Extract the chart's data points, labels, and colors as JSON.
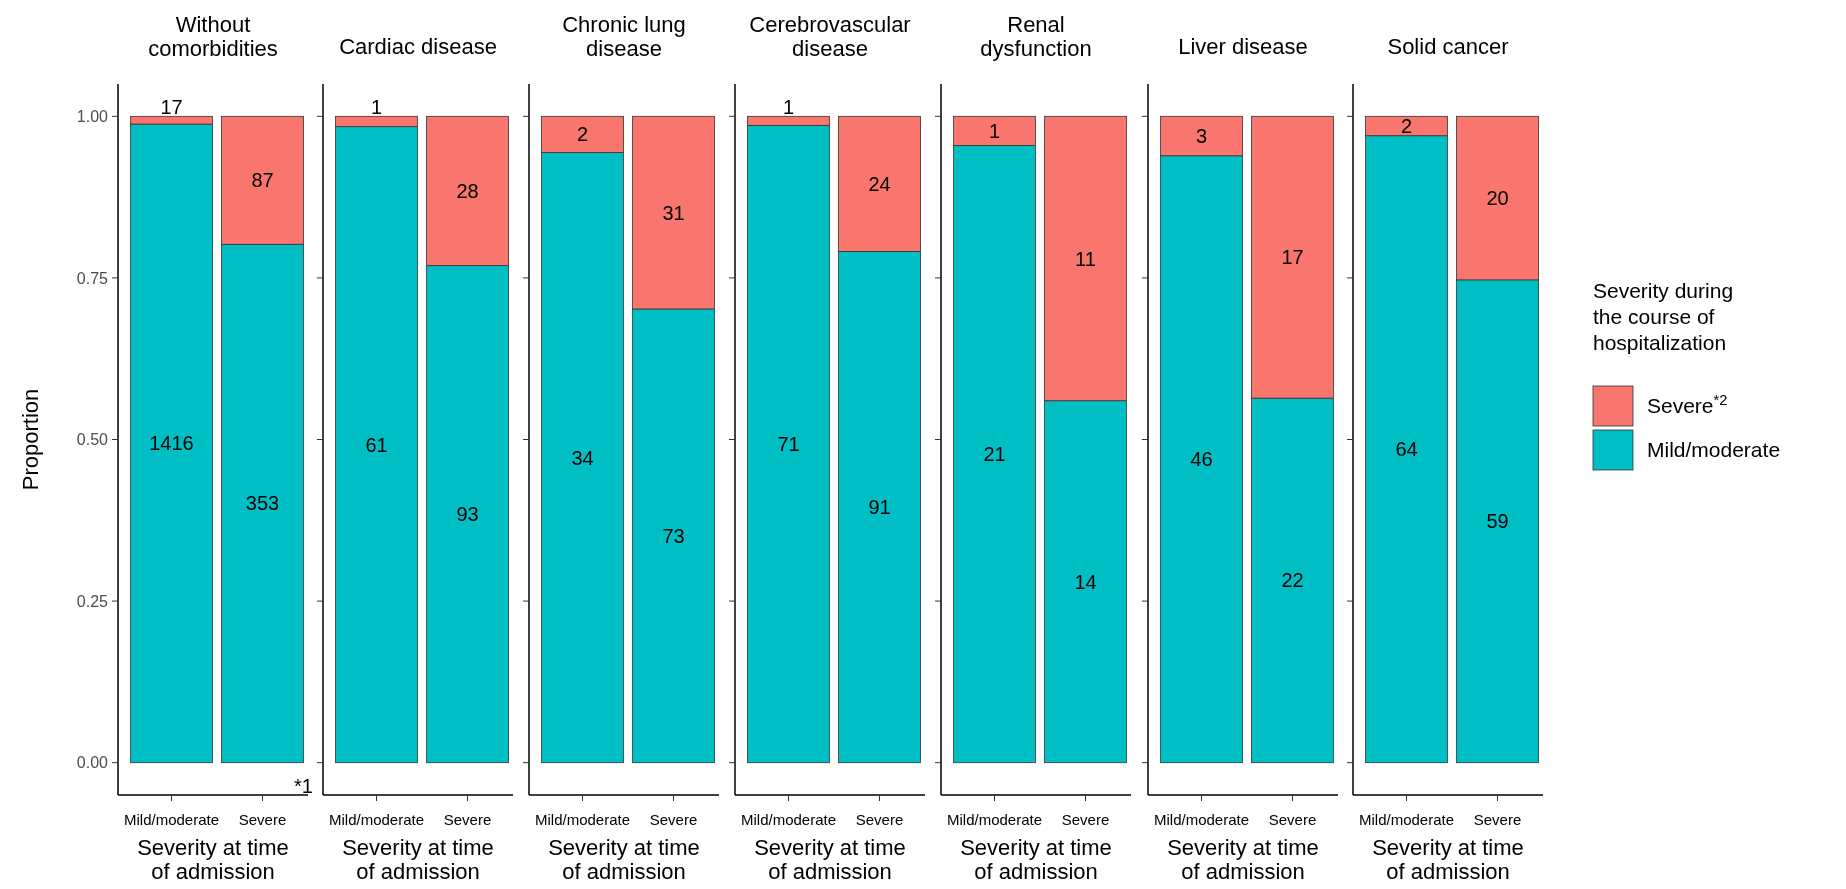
{
  "chart_data": [
    {
      "type": "bar",
      "stacked": true,
      "title": "Without\ncomorbidities",
      "categories": [
        "Mild/moderate",
        "Severe"
      ],
      "xlabel": "Severity at time\nof admission",
      "ylabel": "Proportion",
      "ylim": [
        -0.05,
        1.05
      ],
      "yticks": [
        {
          "value": 0,
          "label": "0.00"
        },
        {
          "value": 0.25,
          "label": "0.25"
        },
        {
          "value": 0.5,
          "label": "0.50"
        },
        {
          "value": 0.75,
          "label": "0.75"
        },
        {
          "value": 1,
          "label": "1.00"
        }
      ],
      "annotations": [
        "1416",
        "17",
        "353",
        "87",
        "*1"
      ],
      "series": [
        {
          "color": "#00bfc4",
          "values": [
            0.988,
            0.802
          ]
        },
        {
          "color": "#f8766d",
          "values": [
            0.012,
            0.198
          ]
        }
      ]
    },
    {
      "type": "bar",
      "stacked": true,
      "title": "Cardiac disease",
      "categories": [
        "Mild/moderate",
        "Severe"
      ],
      "xlabel": "Severity at time\nof admission",
      "tick_labels": "x",
      "ylim": [
        -0.05,
        1.05
      ],
      "yticks": [
        {
          "value": 0,
          "label": null
        },
        {
          "value": 0.25,
          "label": null
        },
        {
          "value": 0.5,
          "label": null
        },
        {
          "value": 0.75,
          "label": null
        },
        {
          "value": 1,
          "label": null
        }
      ],
      "annotations": [
        "61",
        "1",
        "93",
        "28"
      ],
      "series": [
        {
          "color": "#00bfc4",
          "values": [
            0.984,
            0.769
          ]
        },
        {
          "color": "#f8766d",
          "values": [
            0.016,
            0.231
          ]
        }
      ]
    },
    {
      "type": "bar",
      "stacked": true,
      "title": "Chronic lung\ndisease",
      "categories": [
        "Mild/moderate",
        "Severe"
      ],
      "xlabel": "Severity at time\nof admission",
      "tick_labels": "x",
      "ylim": [
        -0.05,
        1.05
      ],
      "yticks": [
        {
          "value": 0,
          "label": null
        },
        {
          "value": 0.25,
          "label": null
        },
        {
          "value": 0.5,
          "label": null
        },
        {
          "value": 0.75,
          "label": null
        },
        {
          "value": 1,
          "label": null
        }
      ],
      "annotations": [
        "34",
        "2",
        "73",
        "31"
      ],
      "series": [
        {
          "color": "#00bfc4",
          "values": [
            0.944,
            0.702
          ]
        },
        {
          "color": "#f8766d",
          "values": [
            0.056,
            0.298
          ]
        }
      ]
    },
    {
      "type": "bar",
      "stacked": true,
      "title": "Cerebrovascular\ndisease",
      "categories": [
        "Mild/moderate",
        "Severe"
      ],
      "xlabel": "Severity at time\nof admission",
      "tick_labels": "x",
      "ylim": [
        -0.05,
        1.05
      ],
      "yticks": [
        {
          "value": 0,
          "label": null
        },
        {
          "value": 0.25,
          "label": null
        },
        {
          "value": 0.5,
          "label": null
        },
        {
          "value": 0.75,
          "label": null
        },
        {
          "value": 1,
          "label": null
        }
      ],
      "annotations": [
        "71",
        "1",
        "91",
        "24"
      ],
      "series": [
        {
          "color": "#00bfc4",
          "values": [
            0.986,
            0.791
          ]
        },
        {
          "color": "#f8766d",
          "values": [
            0.014,
            0.209
          ]
        }
      ]
    },
    {
      "type": "bar",
      "stacked": true,
      "title": "Renal\ndysfunction",
      "categories": [
        "Mild/moderate",
        "Severe"
      ],
      "xlabel": "Severity at time\nof admission",
      "tick_labels": "x",
      "ylim": [
        -0.05,
        1.05
      ],
      "yticks": [
        {
          "value": 0,
          "label": null
        },
        {
          "value": 0.25,
          "label": null
        },
        {
          "value": 0.5,
          "label": null
        },
        {
          "value": 0.75,
          "label": null
        },
        {
          "value": 1,
          "label": null
        }
      ],
      "annotations": [
        "21",
        "1",
        "14",
        "11"
      ],
      "series": [
        {
          "color": "#00bfc4",
          "values": [
            0.955,
            0.56
          ]
        },
        {
          "color": "#f8766d",
          "values": [
            0.045,
            0.44
          ]
        }
      ]
    },
    {
      "type": "bar",
      "stacked": true,
      "title": "Liver disease",
      "categories": [
        "Mild/moderate",
        "Severe"
      ],
      "xlabel": "Severity at time\nof admission",
      "tick_labels": "x",
      "ylim": [
        -0.05,
        1.05
      ],
      "yticks": [
        {
          "value": 0,
          "label": null
        },
        {
          "value": 0.25,
          "label": null
        },
        {
          "value": 0.5,
          "label": null
        },
        {
          "value": 0.75,
          "label": null
        },
        {
          "value": 1,
          "label": null
        }
      ],
      "annotations": [
        "46",
        "3",
        "22",
        "17"
      ],
      "series": [
        {
          "color": "#00bfc4",
          "values": [
            0.939,
            0.564
          ]
        },
        {
          "color": "#f8766d",
          "values": [
            0.061,
            0.436
          ]
        }
      ]
    },
    {
      "type": "bar",
      "stacked": true,
      "title": "Solid cancer",
      "categories": [
        "Mild/moderate",
        "Severe"
      ],
      "xlabel": "Severity at time\nof admission",
      "tick_labels": "x",
      "ylim": [
        -0.05,
        1.05
      ],
      "yticks": [
        {
          "value": 0,
          "label": null
        },
        {
          "value": 0.25,
          "label": null
        },
        {
          "value": 0.5,
          "label": null
        },
        {
          "value": 0.75,
          "label": null
        },
        {
          "value": 1,
          "label": null
        }
      ],
      "legend": "right",
      "legend_title": "Severity during\nthe course of\nhospitalization",
      "annotations": [
        "64",
        "2",
        "59",
        "20"
      ],
      "series": [
        {
          "name": "Mild/moderate",
          "color": "#00bfc4",
          "values": [
            0.97,
            0.747
          ]
        },
        {
          "name": "Severe$^{*2}$",
          "color": "#f8766d",
          "values": [
            0.03,
            0.253
          ]
        }
      ]
    }
  ]
}
